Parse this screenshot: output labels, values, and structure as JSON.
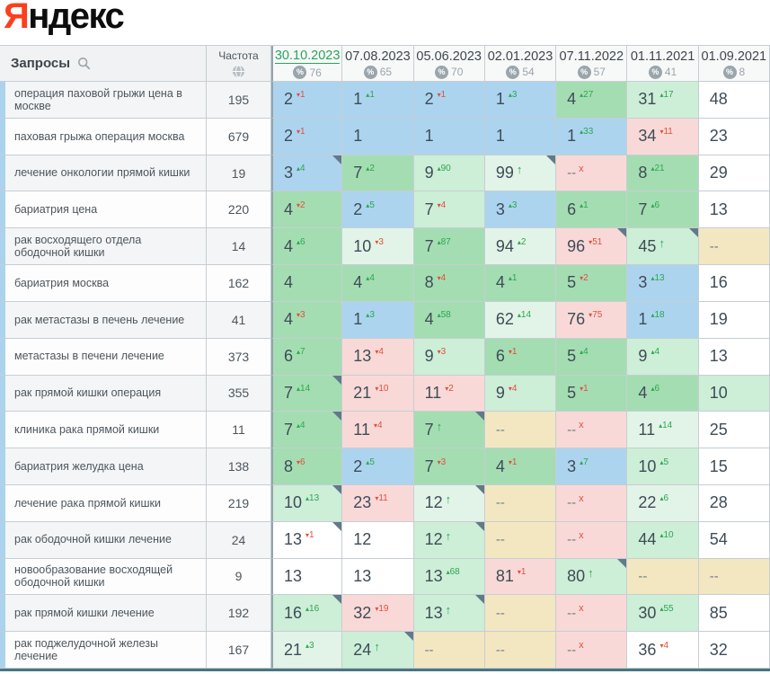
{
  "logo": {
    "prefix": "Я",
    "rest": "ндекс"
  },
  "colors": {
    "logo_red": "#fc3f1d",
    "active_date_green": "#28a55c",
    "delta_up_green": "#2aa84e",
    "delta_down_red": "#e0503c",
    "cell_blue": "#acd4ef",
    "cell_green": "#a4ddb2",
    "cell_lightgreen": "#cdeed7",
    "cell_palegreen": "#e2f4e7",
    "cell_pink": "#f8d9d7",
    "cell_beige": "#f3e7c2",
    "row_accent_blue": "#abd3ee",
    "corner_marker": "#627a87"
  },
  "table": {
    "queries_header": "Запросы",
    "frequency_header": "Частота",
    "dates": [
      {
        "label": "30.10.2023",
        "visibility": "76",
        "active": true
      },
      {
        "label": "07.08.2023",
        "visibility": "65",
        "active": false
      },
      {
        "label": "05.06.2023",
        "visibility": "70",
        "active": false
      },
      {
        "label": "02.01.2023",
        "visibility": "54",
        "active": false
      },
      {
        "label": "07.11.2022",
        "visibility": "57",
        "active": false
      },
      {
        "label": "01.11.2021",
        "visibility": "41",
        "active": false
      },
      {
        "label": "01.09.2021",
        "visibility": "8",
        "active": false
      }
    ],
    "rows": [
      {
        "query": "операция паховой грыжи цена в москве",
        "frequency": "195",
        "cells": [
          {
            "v": "2",
            "d": "1",
            "dir": "down",
            "bg": "blue"
          },
          {
            "v": "1",
            "d": "1",
            "dir": "up",
            "bg": "blue"
          },
          {
            "v": "2",
            "d": "1",
            "dir": "down",
            "bg": "blue"
          },
          {
            "v": "1",
            "d": "3",
            "dir": "up",
            "bg": "blue"
          },
          {
            "v": "4",
            "d": "27",
            "dir": "up",
            "bg": "green"
          },
          {
            "v": "31",
            "d": "17",
            "dir": "up",
            "bg": "lightgreen"
          },
          {
            "v": "48",
            "bg": "white"
          }
        ]
      },
      {
        "query": "паховая грыжа операция москва",
        "frequency": "679",
        "cells": [
          {
            "v": "2",
            "d": "1",
            "dir": "down",
            "bg": "blue"
          },
          {
            "v": "1",
            "bg": "blue"
          },
          {
            "v": "1",
            "bg": "blue"
          },
          {
            "v": "1",
            "bg": "blue"
          },
          {
            "v": "1",
            "d": "33",
            "dir": "up",
            "bg": "blue"
          },
          {
            "v": "34",
            "d": "11",
            "dir": "down",
            "bg": "pink"
          },
          {
            "v": "23",
            "bg": "white"
          }
        ]
      },
      {
        "query": "лечение онкологии прямой кишки",
        "frequency": "19",
        "cells": [
          {
            "v": "3",
            "d": "4",
            "dir": "up",
            "bg": "blue",
            "marker": true
          },
          {
            "v": "7",
            "d": "2",
            "dir": "up",
            "bg": "green"
          },
          {
            "v": "9",
            "d": "90",
            "dir": "up",
            "bg": "lightgreen"
          },
          {
            "v": "99",
            "arrow": true,
            "bg": "palegreen",
            "marker": true
          },
          {
            "v": "--",
            "x": true,
            "bg": "pink"
          },
          {
            "v": "8",
            "d": "21",
            "dir": "up",
            "bg": "green"
          },
          {
            "v": "29",
            "bg": "white"
          }
        ]
      },
      {
        "query": "бариатрия цена",
        "frequency": "220",
        "cells": [
          {
            "v": "4",
            "d": "2",
            "dir": "down",
            "bg": "green"
          },
          {
            "v": "2",
            "d": "5",
            "dir": "up",
            "bg": "blue"
          },
          {
            "v": "7",
            "d": "4",
            "dir": "down",
            "bg": "lightgreen"
          },
          {
            "v": "3",
            "d": "3",
            "dir": "up",
            "bg": "blue"
          },
          {
            "v": "6",
            "d": "1",
            "dir": "up",
            "bg": "green"
          },
          {
            "v": "7",
            "d": "6",
            "dir": "up",
            "bg": "green"
          },
          {
            "v": "13",
            "bg": "white"
          }
        ]
      },
      {
        "query": "рак восходящего отдела ободочной кишки",
        "frequency": "14",
        "cells": [
          {
            "v": "4",
            "d": "6",
            "dir": "up",
            "bg": "green"
          },
          {
            "v": "10",
            "d": "3",
            "dir": "down",
            "bg": "palegreen"
          },
          {
            "v": "7",
            "d": "87",
            "dir": "up",
            "bg": "green"
          },
          {
            "v": "94",
            "d": "2",
            "dir": "up",
            "bg": "palegreen"
          },
          {
            "v": "96",
            "d": "51",
            "dir": "down",
            "bg": "pink",
            "marker": true
          },
          {
            "v": "45",
            "arrow": true,
            "bg": "lightgreen",
            "marker": true
          },
          {
            "v": "--",
            "bg": "beige"
          }
        ]
      },
      {
        "query": "бариатрия москва",
        "frequency": "162",
        "cells": [
          {
            "v": "4",
            "bg": "green"
          },
          {
            "v": "4",
            "d": "4",
            "dir": "up",
            "bg": "green"
          },
          {
            "v": "8",
            "d": "4",
            "dir": "down",
            "bg": "green"
          },
          {
            "v": "4",
            "d": "1",
            "dir": "up",
            "bg": "green"
          },
          {
            "v": "5",
            "d": "2",
            "dir": "down",
            "bg": "green"
          },
          {
            "v": "3",
            "d": "13",
            "dir": "up",
            "bg": "blue"
          },
          {
            "v": "16",
            "bg": "white"
          }
        ]
      },
      {
        "query": "рак метастазы в печень лечение",
        "frequency": "41",
        "cells": [
          {
            "v": "4",
            "d": "3",
            "dir": "down",
            "bg": "green"
          },
          {
            "v": "1",
            "d": "3",
            "dir": "up",
            "bg": "blue"
          },
          {
            "v": "4",
            "d": "58",
            "dir": "up",
            "bg": "green"
          },
          {
            "v": "62",
            "d": "14",
            "dir": "up",
            "bg": "palegreen"
          },
          {
            "v": "76",
            "d": "75",
            "dir": "down",
            "bg": "pink"
          },
          {
            "v": "1",
            "d": "18",
            "dir": "up",
            "bg": "blue"
          },
          {
            "v": "19",
            "bg": "white"
          }
        ]
      },
      {
        "query": "метастазы в печени лечение",
        "frequency": "373",
        "cells": [
          {
            "v": "6",
            "d": "7",
            "dir": "up",
            "bg": "green"
          },
          {
            "v": "13",
            "d": "4",
            "dir": "down",
            "bg": "pink"
          },
          {
            "v": "9",
            "d": "3",
            "dir": "down",
            "bg": "lightgreen"
          },
          {
            "v": "6",
            "d": "1",
            "dir": "down",
            "bg": "green"
          },
          {
            "v": "5",
            "d": "4",
            "dir": "up",
            "bg": "green"
          },
          {
            "v": "9",
            "d": "4",
            "dir": "up",
            "bg": "lightgreen"
          },
          {
            "v": "13",
            "bg": "white"
          }
        ]
      },
      {
        "query": "рак прямой кишки операция",
        "frequency": "355",
        "cells": [
          {
            "v": "7",
            "d": "14",
            "dir": "up",
            "bg": "green",
            "marker": true
          },
          {
            "v": "21",
            "d": "10",
            "dir": "down",
            "bg": "pink"
          },
          {
            "v": "11",
            "d": "2",
            "dir": "down",
            "bg": "pink"
          },
          {
            "v": "9",
            "d": "4",
            "dir": "down",
            "bg": "lightgreen"
          },
          {
            "v": "5",
            "d": "1",
            "dir": "down",
            "bg": "green"
          },
          {
            "v": "4",
            "d": "6",
            "dir": "up",
            "bg": "green"
          },
          {
            "v": "10",
            "bg": "lightgreen"
          }
        ]
      },
      {
        "query": "клиника рака прямой кишки",
        "frequency": "11",
        "cells": [
          {
            "v": "7",
            "d": "4",
            "dir": "up",
            "bg": "green",
            "marker": true
          },
          {
            "v": "11",
            "d": "4",
            "dir": "down",
            "bg": "pink"
          },
          {
            "v": "7",
            "arrow": true,
            "bg": "green",
            "marker": true
          },
          {
            "v": "--",
            "bg": "beige"
          },
          {
            "v": "--",
            "x": true,
            "bg": "pink"
          },
          {
            "v": "11",
            "d": "14",
            "dir": "up",
            "bg": "palegreen"
          },
          {
            "v": "25",
            "bg": "white"
          }
        ]
      },
      {
        "query": "бариатрия желудка цена",
        "frequency": "138",
        "cells": [
          {
            "v": "8",
            "d": "6",
            "dir": "down",
            "bg": "green"
          },
          {
            "v": "2",
            "d": "5",
            "dir": "up",
            "bg": "blue"
          },
          {
            "v": "7",
            "d": "3",
            "dir": "down",
            "bg": "green"
          },
          {
            "v": "4",
            "d": "1",
            "dir": "down",
            "bg": "green"
          },
          {
            "v": "3",
            "d": "7",
            "dir": "up",
            "bg": "blue"
          },
          {
            "v": "10",
            "d": "5",
            "dir": "up",
            "bg": "lightgreen"
          },
          {
            "v": "15",
            "bg": "white"
          }
        ]
      },
      {
        "query": "лечение рака прямой кишки",
        "frequency": "219",
        "cells": [
          {
            "v": "10",
            "d": "13",
            "dir": "up",
            "bg": "lightgreen",
            "marker": true
          },
          {
            "v": "23",
            "d": "11",
            "dir": "down",
            "bg": "pink"
          },
          {
            "v": "12",
            "arrow": true,
            "bg": "palegreen",
            "marker": true
          },
          {
            "v": "--",
            "bg": "beige"
          },
          {
            "v": "--",
            "x": true,
            "bg": "pink"
          },
          {
            "v": "22",
            "d": "6",
            "dir": "up",
            "bg": "palegreen"
          },
          {
            "v": "28",
            "bg": "white"
          }
        ]
      },
      {
        "query": "рак ободочной кишки лечение",
        "frequency": "24",
        "cells": [
          {
            "v": "13",
            "d": "1",
            "dir": "down",
            "bg": "white",
            "marker": true
          },
          {
            "v": "12",
            "bg": "white"
          },
          {
            "v": "12",
            "arrow": true,
            "bg": "lightgreen",
            "marker": true
          },
          {
            "v": "--",
            "bg": "beige"
          },
          {
            "v": "--",
            "x": true,
            "bg": "pink"
          },
          {
            "v": "44",
            "d": "10",
            "dir": "up",
            "bg": "lightgreen"
          },
          {
            "v": "54",
            "bg": "white"
          }
        ]
      },
      {
        "query": "новообразование восходящей ободочной кишки",
        "frequency": "9",
        "cells": [
          {
            "v": "13",
            "bg": "white"
          },
          {
            "v": "13",
            "bg": "white"
          },
          {
            "v": "13",
            "d": "68",
            "dir": "up",
            "bg": "lightgreen"
          },
          {
            "v": "81",
            "d": "1",
            "dir": "down",
            "bg": "pink"
          },
          {
            "v": "80",
            "arrow": true,
            "bg": "lightgreen",
            "marker": true
          },
          {
            "v": "--",
            "bg": "beige"
          },
          {
            "v": "--",
            "bg": "beige"
          }
        ]
      },
      {
        "query": "рак прямой кишки лечение",
        "frequency": "192",
        "cells": [
          {
            "v": "16",
            "d": "16",
            "dir": "up",
            "bg": "lightgreen",
            "marker": true
          },
          {
            "v": "32",
            "d": "19",
            "dir": "down",
            "bg": "pink"
          },
          {
            "v": "13",
            "arrow": true,
            "bg": "lightgreen",
            "marker": true
          },
          {
            "v": "--",
            "bg": "beige"
          },
          {
            "v": "--",
            "x": true,
            "bg": "pink"
          },
          {
            "v": "30",
            "d": "55",
            "dir": "up",
            "bg": "lightgreen"
          },
          {
            "v": "85",
            "bg": "white"
          }
        ]
      },
      {
        "query": "рак поджелудочной железы лечение",
        "frequency": "167",
        "cells": [
          {
            "v": "21",
            "d": "3",
            "dir": "up",
            "bg": "palegreen"
          },
          {
            "v": "24",
            "arrow": true,
            "bg": "lightgreen",
            "marker": true
          },
          {
            "v": "--",
            "bg": "beige"
          },
          {
            "v": "--",
            "bg": "beige"
          },
          {
            "v": "--",
            "x": true,
            "bg": "pink"
          },
          {
            "v": "36",
            "d": "4",
            "dir": "down",
            "bg": "white"
          },
          {
            "v": "32",
            "bg": "white"
          }
        ]
      }
    ]
  }
}
